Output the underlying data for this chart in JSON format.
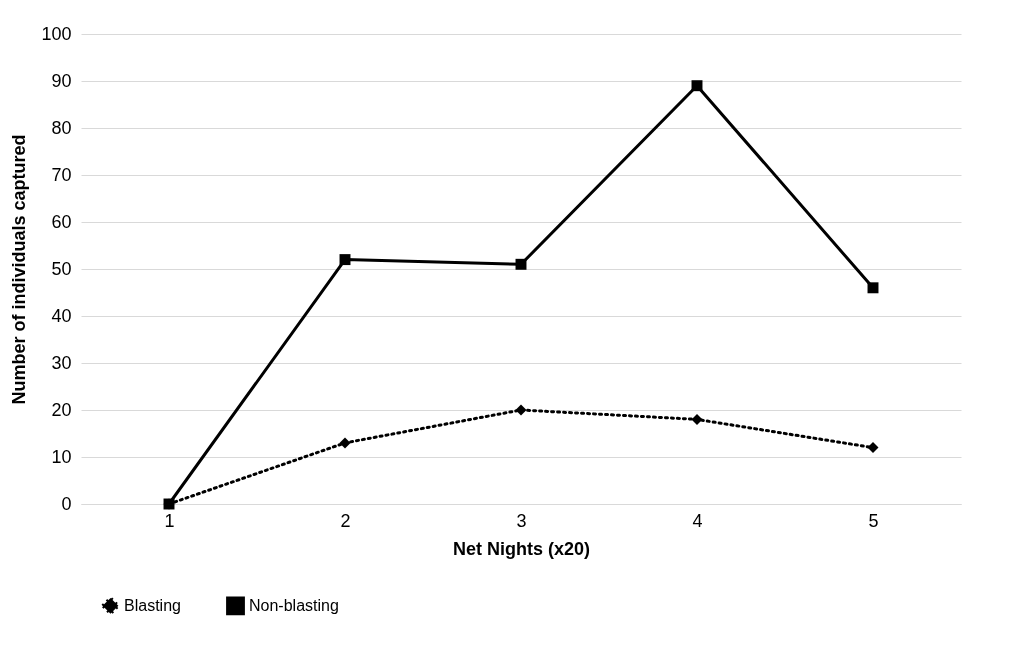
{
  "chart_data": {
    "type": "line",
    "xlabel": "Net Nights (x20)",
    "ylabel": "Number of individuals captured",
    "categories": [
      "1",
      "2",
      "3",
      "4",
      "5"
    ],
    "series": [
      {
        "name": "Blasting",
        "color": "#000000",
        "values": [
          0,
          13,
          20,
          18,
          12
        ],
        "marker": "diamond",
        "line_style": "dotted"
      },
      {
        "name": "Non-blasting",
        "color": "#000000",
        "values": [
          0,
          52,
          51,
          89,
          46
        ],
        "marker": "square",
        "line_style": "solid"
      }
    ],
    "ylim": [
      0,
      100
    ],
    "yticks": [
      0,
      10,
      20,
      30,
      40,
      50,
      60,
      70,
      80,
      90,
      100
    ],
    "grid": "y",
    "legend": "bottom"
  }
}
